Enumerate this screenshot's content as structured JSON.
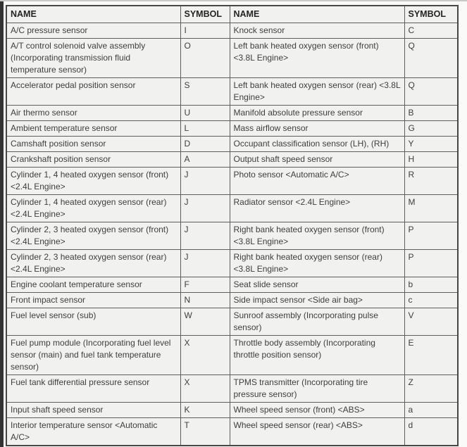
{
  "page": {
    "colors": {
      "cell_bg": "#f1f1ef",
      "page_bg": "#fafaf8",
      "border": "#5e5e5e",
      "text": "#3e3e3e",
      "left_bar": "#333333"
    }
  },
  "table": {
    "headers": [
      "NAME",
      "SYMBOL",
      "NAME",
      "SYMBOL"
    ],
    "rows": [
      [
        "A/C pressure sensor",
        "I",
        "Knock sensor",
        "C"
      ],
      [
        "A/T control solenoid valve assembly (Incorporating transmission fluid temperature sensor)",
        "O",
        "Left bank heated oxygen sensor (front) <3.8L Engine>",
        "Q"
      ],
      [
        "Accelerator pedal position sensor",
        "S",
        "Left bank heated oxygen sensor (rear) <3.8L Engine>",
        "Q"
      ],
      [
        "Air thermo sensor",
        "U",
        "Manifold absolute pressure sensor",
        "B"
      ],
      [
        "Ambient temperature sensor",
        "L",
        "Mass airflow sensor",
        "G"
      ],
      [
        "Camshaft position sensor",
        "D",
        "Occupant classification sensor (LH), (RH)",
        "Y"
      ],
      [
        "Crankshaft position sensor",
        "A",
        "Output shaft speed sensor",
        "H"
      ],
      [
        "Cylinder 1, 4 heated oxygen sensor (front) <2.4L Engine>",
        "J",
        "Photo sensor <Automatic A/C>",
        "R"
      ],
      [
        "Cylinder 1, 4 heated oxygen sensor (rear) <2.4L Engine>",
        "J",
        "Radiator sensor <2.4L Engine>",
        "M"
      ],
      [
        "Cylinder 2, 3 heated oxygen sensor (front) <2.4L Engine>",
        "J",
        "Right bank heated oxygen sensor (front) <3.8L Engine>",
        "P"
      ],
      [
        "Cylinder 2, 3 heated oxygen sensor (rear) <2.4L Engine>",
        "J",
        "Right bank heated oxygen sensor (rear) <3.8L Engine>",
        "P"
      ],
      [
        "Engine coolant temperature sensor",
        "F",
        "Seat slide sensor",
        "b"
      ],
      [
        "Front impact sensor",
        "N",
        "Side impact sensor <Side air bag>",
        "c"
      ],
      [
        "Fuel level sensor (sub)",
        "W",
        "Sunroof assembly (Incorporating pulse sensor)",
        "V"
      ],
      [
        "Fuel pump module (Incorporating fuel level sensor (main) and fuel tank temperature sensor)",
        "X",
        "Throttle body assembly (Incorporating throttle position sensor)",
        "E"
      ],
      [
        "Fuel tank differential pressure sensor",
        "X",
        "TPMS transmitter (Incorporating tire pressure sensor)",
        "Z"
      ],
      [
        "Input shaft speed sensor",
        "K",
        "Wheel speed sensor (front) <ABS>",
        "a"
      ],
      [
        "Interior temperature sensor <Automatic A/C>",
        "T",
        "Wheel speed sensor (rear) <ABS>",
        "d"
      ]
    ]
  }
}
